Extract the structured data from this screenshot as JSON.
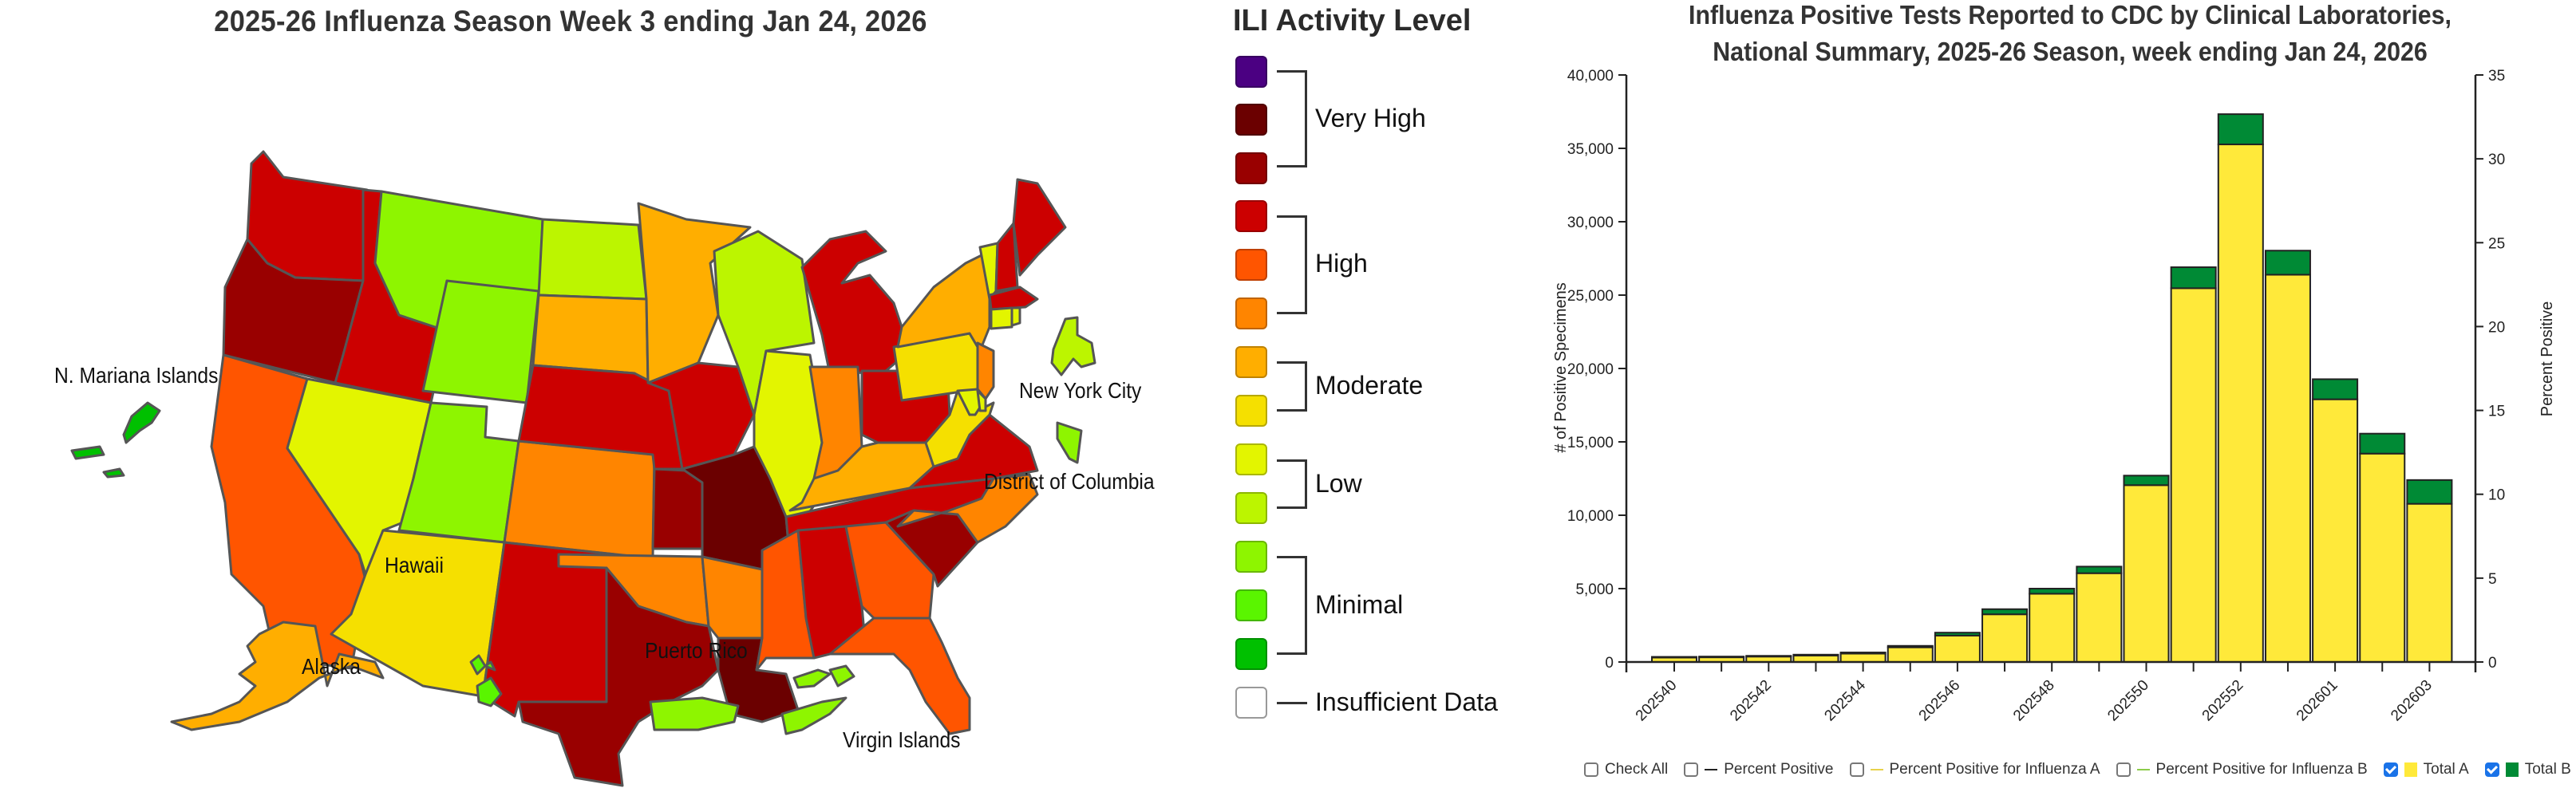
{
  "map": {
    "title": "2025-26 Influenza Season Week 3 ending Jan 24, 2026",
    "labels": {
      "mariana": "N. Mariana Islands",
      "hawaii": "Hawaii",
      "alaska": "Alaska",
      "puerto_rico": "Puerto Rico",
      "virgin_islands": "Virgin Islands",
      "nyc": "New York City",
      "dc": "District of Columbia"
    },
    "level_colors": {
      "13": "#4b0082",
      "12": "#6b0000",
      "11": "#990000",
      "10": "#cc0000",
      "9": "#ff5500",
      "8": "#ff8500",
      "7": "#ffae00",
      "6": "#f5e000",
      "5": "#e3f500",
      "4": "#bcf500",
      "3": "#8ef500",
      "2": "#5af500",
      "1": "#00c000",
      "0": "#ffffff"
    },
    "states": [
      {
        "id": "WA",
        "level": 10
      },
      {
        "id": "OR",
        "level": 11
      },
      {
        "id": "CA",
        "level": 9
      },
      {
        "id": "ID",
        "level": 10
      },
      {
        "id": "NV",
        "level": 5
      },
      {
        "id": "MT",
        "level": 3
      },
      {
        "id": "WY",
        "level": 3
      },
      {
        "id": "UT",
        "level": 3
      },
      {
        "id": "AZ",
        "level": 6
      },
      {
        "id": "CO",
        "level": 8
      },
      {
        "id": "NM",
        "level": 10
      },
      {
        "id": "ND",
        "level": 4
      },
      {
        "id": "SD",
        "level": 7
      },
      {
        "id": "NE",
        "level": 10
      },
      {
        "id": "KS",
        "level": 11
      },
      {
        "id": "OK",
        "level": 8
      },
      {
        "id": "TX",
        "level": 11
      },
      {
        "id": "MN",
        "level": 7
      },
      {
        "id": "IA",
        "level": 10
      },
      {
        "id": "MO",
        "level": 12
      },
      {
        "id": "AR",
        "level": 8
      },
      {
        "id": "LA",
        "level": 12
      },
      {
        "id": "WI",
        "level": 4
      },
      {
        "id": "IL",
        "level": 5
      },
      {
        "id": "MI",
        "level": 10
      },
      {
        "id": "IN",
        "level": 8
      },
      {
        "id": "OH",
        "level": 10
      },
      {
        "id": "KY",
        "level": 7
      },
      {
        "id": "TN",
        "level": 10
      },
      {
        "id": "MS",
        "level": 9
      },
      {
        "id": "AL",
        "level": 10
      },
      {
        "id": "GA",
        "level": 9
      },
      {
        "id": "FL",
        "level": 9
      },
      {
        "id": "SC",
        "level": 11
      },
      {
        "id": "NC",
        "level": 8
      },
      {
        "id": "VA",
        "level": 10
      },
      {
        "id": "WV",
        "level": 6
      },
      {
        "id": "PA",
        "level": 6
      },
      {
        "id": "NY",
        "level": 7
      },
      {
        "id": "NJ",
        "level": 8
      },
      {
        "id": "MD",
        "level": 5
      },
      {
        "id": "DE",
        "level": 5
      },
      {
        "id": "VT",
        "level": 5
      },
      {
        "id": "NH",
        "level": 10
      },
      {
        "id": "ME",
        "level": 10
      },
      {
        "id": "MA",
        "level": 10
      },
      {
        "id": "CT",
        "level": 5
      },
      {
        "id": "RI",
        "level": 5
      },
      {
        "id": "AK",
        "level": 7
      },
      {
        "id": "HI",
        "level": 2
      },
      {
        "id": "PR",
        "level": 3
      },
      {
        "id": "VI",
        "level": 3
      },
      {
        "id": "MP",
        "level": 1
      },
      {
        "id": "NYC",
        "level": 4
      },
      {
        "id": "DC",
        "level": 3
      }
    ]
  },
  "legend": {
    "title": "ILI Activity Level",
    "levels": [
      {
        "level": 13,
        "color": "#4b0082"
      },
      {
        "level": 12,
        "color": "#6b0000"
      },
      {
        "level": 11,
        "color": "#990000"
      },
      {
        "level": 10,
        "color": "#cc0000"
      },
      {
        "level": 9,
        "color": "#ff5500"
      },
      {
        "level": 8,
        "color": "#ff8500"
      },
      {
        "level": 7,
        "color": "#ffae00"
      },
      {
        "level": 6,
        "color": "#f5e000"
      },
      {
        "level": 5,
        "color": "#e3f500"
      },
      {
        "level": 4,
        "color": "#bcf500"
      },
      {
        "level": 3,
        "color": "#8ef500"
      },
      {
        "level": 2,
        "color": "#5af500"
      },
      {
        "level": 1,
        "color": "#00c000"
      },
      {
        "level": 0,
        "color": "#ffffff"
      }
    ],
    "categories": {
      "very_high": "Very High",
      "high": "High",
      "moderate": "Moderate",
      "low": "Low",
      "minimal": "Minimal",
      "insufficient": "Insufficient Data"
    }
  },
  "chart": {
    "title_line1": "Influenza Positive Tests Reported to CDC by Clinical Laboratories,",
    "title_line2": "National Summary, 2025-26 Season, week ending Jan 24, 2026",
    "ylabel_left": "# of Positive Specimens",
    "ylabel_right": "Percent Positive",
    "left_ticks": [
      "0",
      "5,000",
      "10,000",
      "15,000",
      "20,000",
      "25,000",
      "30,000",
      "35,000",
      "40,000"
    ],
    "right_ticks": [
      "0",
      "5",
      "10",
      "15",
      "20",
      "25",
      "30",
      "35"
    ],
    "colors": {
      "total_a": "#ffe93a",
      "total_b": "#008a35",
      "pct_pos": "#222222",
      "pct_a": "#e8d24a",
      "pct_b": "#8ccc4a",
      "checkbox": "#1a73e8"
    },
    "legend": {
      "check_all": "Check All",
      "pct_pos": "Percent Positive",
      "pct_a": "Percent Positive for Influenza A",
      "pct_b": "Percent Positive for Influenza B",
      "total_a": "Total A",
      "total_b": "Total B"
    }
  },
  "chart_data": {
    "type": "bar",
    "stacked": true,
    "title": "Influenza Positive Tests Reported to CDC by Clinical Laboratories, National Summary, 2025-26 Season, week ending Jan 24, 2026",
    "xlabel": "",
    "ylabel": "# of Positive Specimens",
    "ylabel_right": "Percent Positive",
    "ylim": [
      0,
      40000
    ],
    "ylim_right": [
      0,
      35
    ],
    "categories": [
      "202540",
      "202541",
      "202542",
      "202543",
      "202544",
      "202545",
      "202546",
      "202547",
      "202548",
      "202549",
      "202550",
      "202551",
      "202552",
      "202553",
      "202601",
      "202602",
      "202603"
    ],
    "x_tick_labels": [
      "202540",
      "202542",
      "202544",
      "202546",
      "202548",
      "202550",
      "202552",
      "202601",
      "202603"
    ],
    "series": [
      {
        "name": "Total A",
        "color": "#ffe93a",
        "values": [
          300,
          320,
          370,
          440,
          570,
          1000,
          1800,
          3250,
          4650,
          6050,
          12050,
          25470,
          35270,
          26390,
          17900,
          14200,
          10780
        ]
      },
      {
        "name": "Total B",
        "color": "#008a35",
        "values": [
          50,
          50,
          50,
          60,
          80,
          100,
          200,
          350,
          350,
          450,
          650,
          1430,
          2060,
          1640,
          1370,
          1360,
          1620
        ]
      }
    ],
    "legend": [
      {
        "label": "Check All",
        "checked": false
      },
      {
        "label": "Percent Positive",
        "checked": false
      },
      {
        "label": "Percent Positive for Influenza A",
        "checked": false
      },
      {
        "label": "Percent Positive for Influenza B",
        "checked": false
      },
      {
        "label": "Total A",
        "checked": true
      },
      {
        "label": "Total B",
        "checked": true
      }
    ],
    "grid": false,
    "legend_position": "bottom"
  }
}
